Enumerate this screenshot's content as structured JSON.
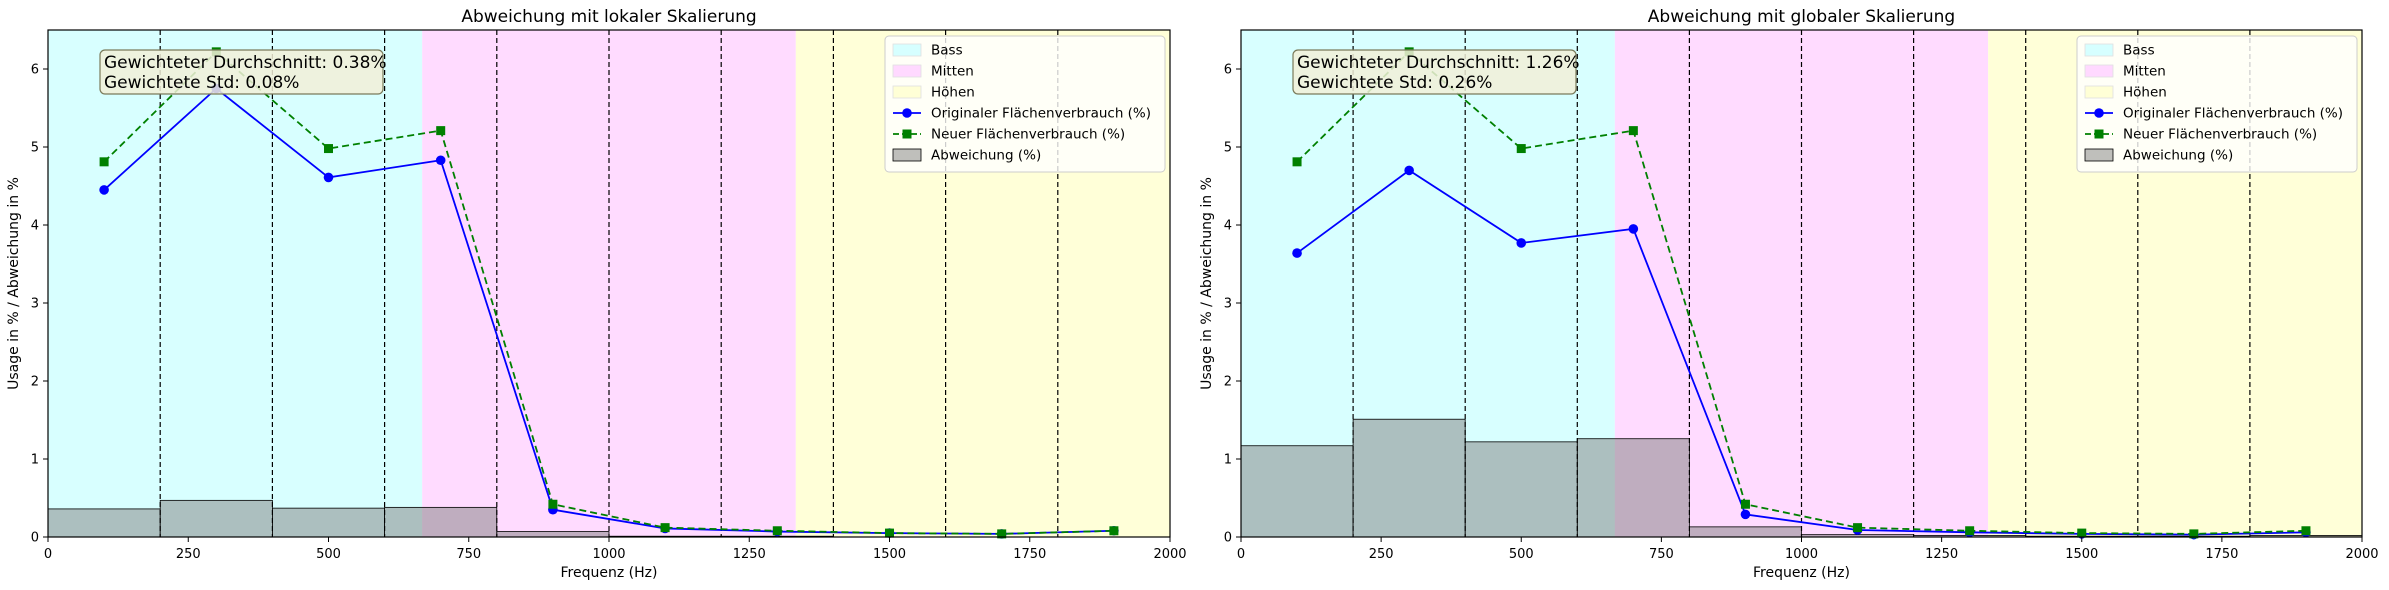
{
  "chart_data": [
    {
      "type": "line",
      "title": "Abweichung mit lokaler Skalierung",
      "xlabel": "Frequenz (Hz)",
      "ylabel": "Usage in % / Abweichung in %",
      "xlim": [
        0,
        2000
      ],
      "ylim": [
        0,
        6.5
      ],
      "xticks": [
        "0",
        "250",
        "500",
        "750",
        "1000",
        "1250",
        "1500",
        "1750",
        "2000"
      ],
      "yticks": [
        "0",
        "1",
        "2",
        "3",
        "4",
        "5",
        "6"
      ],
      "grid": false,
      "legend_position": "top-right",
      "bands": [
        {
          "name": "Bass",
          "range": [
            0,
            667
          ],
          "color": "#d6ffff"
        },
        {
          "name": "Mitten",
          "range": [
            667,
            1333
          ],
          "color": "#ffd9ff"
        },
        {
          "name": "Höhen",
          "range": [
            1333,
            2000
          ],
          "color": "#ffffd6"
        }
      ],
      "dashed_vlines": [
        200,
        400,
        600,
        800,
        1000,
        1200,
        1400,
        1600,
        1800
      ],
      "x": [
        100,
        300,
        500,
        700,
        900,
        1100,
        1300,
        1500,
        1700,
        1900
      ],
      "series": [
        {
          "name": "Originaler Flächenverbrauch (%)",
          "style": "line-circle",
          "color": "#0000ff",
          "values": [
            4.45,
            5.75,
            4.61,
            4.83,
            0.35,
            0.11,
            0.07,
            0.05,
            0.04,
            0.08
          ]
        },
        {
          "name": "Neuer Flächenverbrauch (%)",
          "style": "dashed-square",
          "color": "#008000",
          "values": [
            4.81,
            6.22,
            4.98,
            5.21,
            0.42,
            0.12,
            0.08,
            0.05,
            0.04,
            0.08
          ]
        }
      ],
      "deviation": {
        "name": "Abweichung (%)",
        "color": "#808080",
        "bar_width": 200,
        "values": [
          0.36,
          0.47,
          0.37,
          0.38,
          0.07,
          0.01,
          0.01,
          0.0,
          0.0,
          0.0
        ]
      },
      "stats": {
        "line1": "Gewichteter Durchschnitt: 0.38%",
        "line2": "Gewichtete Std: 0.08%"
      }
    },
    {
      "type": "line",
      "title": "Abweichung mit globaler Skalierung",
      "xlabel": "Frequenz (Hz)",
      "ylabel": "Usage in % / Abweichung in %",
      "xlim": [
        0,
        2000
      ],
      "ylim": [
        0,
        6.5
      ],
      "xticks": [
        "0",
        "250",
        "500",
        "750",
        "1000",
        "1250",
        "1500",
        "1750",
        "2000"
      ],
      "yticks": [
        "0",
        "1",
        "2",
        "3",
        "4",
        "5",
        "6"
      ],
      "grid": false,
      "legend_position": "top-right",
      "bands": [
        {
          "name": "Bass",
          "range": [
            0,
            667
          ],
          "color": "#d6ffff"
        },
        {
          "name": "Mitten",
          "range": [
            667,
            1333
          ],
          "color": "#ffd9ff"
        },
        {
          "name": "Höhen",
          "range": [
            1333,
            2000
          ],
          "color": "#ffffd6"
        }
      ],
      "dashed_vlines": [
        200,
        400,
        600,
        800,
        1000,
        1200,
        1400,
        1600,
        1800
      ],
      "x": [
        100,
        300,
        500,
        700,
        900,
        1100,
        1300,
        1500,
        1700,
        1900
      ],
      "series": [
        {
          "name": "Originaler Flächenverbrauch (%)",
          "style": "line-circle",
          "color": "#0000ff",
          "values": [
            3.64,
            4.7,
            3.77,
            3.95,
            0.29,
            0.09,
            0.06,
            0.04,
            0.03,
            0.06
          ]
        },
        {
          "name": "Neuer Flächenverbrauch (%)",
          "style": "dashed-square",
          "color": "#008000",
          "values": [
            4.81,
            6.22,
            4.98,
            5.21,
            0.42,
            0.12,
            0.08,
            0.05,
            0.04,
            0.08
          ]
        }
      ],
      "deviation": {
        "name": "Abweichung (%)",
        "color": "#808080",
        "bar_width": 200,
        "values": [
          1.17,
          1.51,
          1.22,
          1.26,
          0.13,
          0.03,
          0.02,
          0.01,
          0.01,
          0.02
        ]
      },
      "stats": {
        "line1": "Gewichteter Durchschnitt: 1.26%",
        "line2": "Gewichtete Std: 0.26%"
      }
    }
  ]
}
